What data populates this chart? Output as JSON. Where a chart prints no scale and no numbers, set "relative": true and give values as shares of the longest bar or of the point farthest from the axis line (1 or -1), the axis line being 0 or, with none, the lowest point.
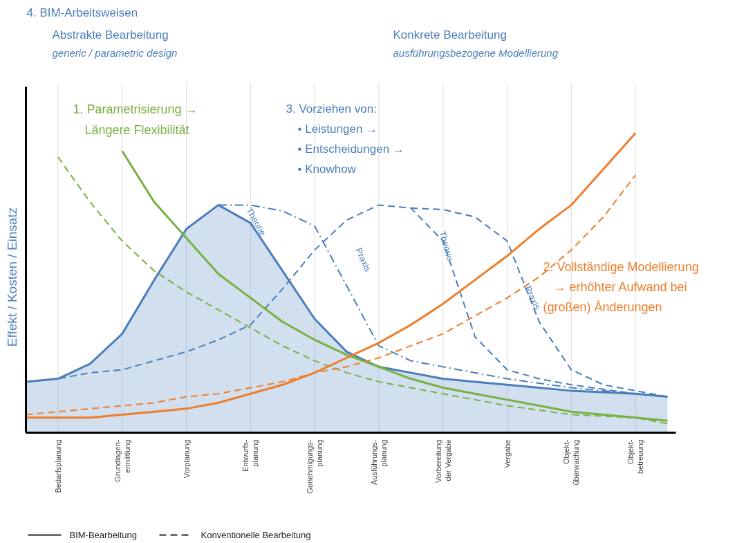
{
  "chart_data": {
    "type": "line",
    "relative": true,
    "ylabel": "Effekt / Kosten / Einsatz",
    "grid": "x",
    "categories": [
      null,
      "Bedarfsplanung",
      null,
      "Grundlagen-\nermittlung",
      null,
      "Vorplanung",
      null,
      "Entwurfs-\nplanung",
      null,
      "Genehmigungs-\nplanung",
      null,
      "Ausführungs-\nplanung",
      null,
      "Vorbereitung\nder Vergabe",
      null,
      "Vergabe",
      null,
      "Objekt-\nüberwachung",
      null,
      "Objekt-\nbetreuung",
      null
    ],
    "series": [
      {
        "type": "area",
        "color": "#4a7ebb",
        "line_style": "solid",
        "values": [
          0.17,
          0.18,
          0.23,
          0.33,
          0.51,
          0.68,
          0.76,
          0.7,
          0.54,
          0.38,
          0.27,
          0.22,
          0.2,
          0.18,
          0.17,
          0.16,
          0.15,
          0.14,
          0.135,
          0.13,
          0.12
        ]
      },
      {
        "color": "#4a7ebb",
        "line_style": "dashed",
        "values": [
          0.17,
          0.18,
          0.2,
          0.21,
          0.24,
          0.27,
          0.31,
          0.36,
          0.48,
          0.61,
          0.71,
          0.76,
          0.75,
          0.64,
          0.32,
          0.21,
          0.18,
          0.16,
          0.145,
          0.13,
          0.12
        ]
      },
      {
        "color": "#4a7ebb",
        "line_style": "dashdot",
        "values": [
          null,
          null,
          null,
          null,
          null,
          null,
          0.76,
          0.76,
          0.74,
          0.69,
          0.49,
          0.29,
          0.24,
          0.22,
          0.2,
          0.18,
          0.165,
          0.15,
          0.14,
          0.13,
          0.12
        ]
      },
      {
        "color": "#4a7ebb",
        "line_style": "dashed",
        "values": [
          null,
          null,
          null,
          null,
          null,
          null,
          null,
          null,
          null,
          null,
          null,
          null,
          0.75,
          0.745,
          0.72,
          0.64,
          0.37,
          0.21,
          0.16,
          0.14,
          0.12
        ]
      },
      {
        "color": "#77b140",
        "line_style": "solid",
        "values": [
          null,
          null,
          null,
          0.94,
          0.77,
          0.65,
          0.53,
          0.45,
          0.37,
          0.31,
          0.26,
          0.22,
          0.18,
          0.15,
          0.13,
          0.11,
          0.09,
          0.07,
          0.06,
          0.05,
          0.04
        ]
      },
      {
        "color": "#77b140",
        "line_style": "dashed",
        "values": [
          null,
          0.92,
          0.77,
          0.64,
          0.54,
          0.47,
          0.41,
          0.35,
          0.29,
          0.24,
          0.2,
          0.17,
          0.15,
          0.13,
          0.11,
          0.09,
          0.075,
          0.06,
          0.055,
          0.05,
          0.03
        ]
      },
      {
        "color": "#f07d2a",
        "line_style": "solid",
        "values": [
          0.05,
          0.05,
          0.05,
          0.06,
          0.07,
          0.08,
          0.1,
          0.13,
          0.16,
          0.2,
          0.25,
          0.3,
          0.36,
          0.43,
          0.51,
          0.59,
          0.68,
          0.76,
          0.88,
          1.0,
          null
        ]
      },
      {
        "color": "#f07d2a",
        "line_style": "dashed",
        "values": [
          0.06,
          0.07,
          0.08,
          0.09,
          0.1,
          0.12,
          0.13,
          0.15,
          0.17,
          0.2,
          0.22,
          0.25,
          0.29,
          0.33,
          0.39,
          0.45,
          0.52,
          0.61,
          0.72,
          0.86,
          null
        ]
      }
    ],
    "annotations": [
      "4. BIM-Arbeitsweisen",
      "Abstrakte Bearbeitung",
      "generic / parametric design",
      "Konkrete Bearbeitung",
      "ausführungsbezogene Modellierung",
      "1. Parametrisierung →\nLängere Flexibilität",
      "3. Vorziehen von:\n•  Leistungen →\n•  Entscheidungen →\n•  Knowhow",
      "2. Vollständige Modellierung\n→ erhöhter Aufwand bei\n(großen) Änderungen",
      "Theorie",
      "Praxis",
      "Theorie",
      "Praxis",
      "BIM-Bearbeitung",
      "Konventionelle Bearbeitung"
    ]
  }
}
